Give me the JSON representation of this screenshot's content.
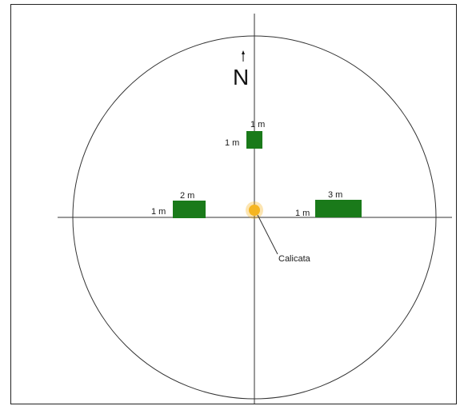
{
  "diagram": {
    "north_label": "N",
    "callout_label": "Calicata",
    "plots": [
      {
        "id": "north",
        "width_label": "1 m",
        "height_label": "1 m"
      },
      {
        "id": "west",
        "width_label": "2 m",
        "height_label": "1 m"
      },
      {
        "id": "east",
        "width_label": "3 m",
        "height_label": "1 m"
      }
    ],
    "colors": {
      "plot_fill": "#1a7a1a",
      "calicata_fill": "#f5b521",
      "line": "#333333"
    }
  }
}
